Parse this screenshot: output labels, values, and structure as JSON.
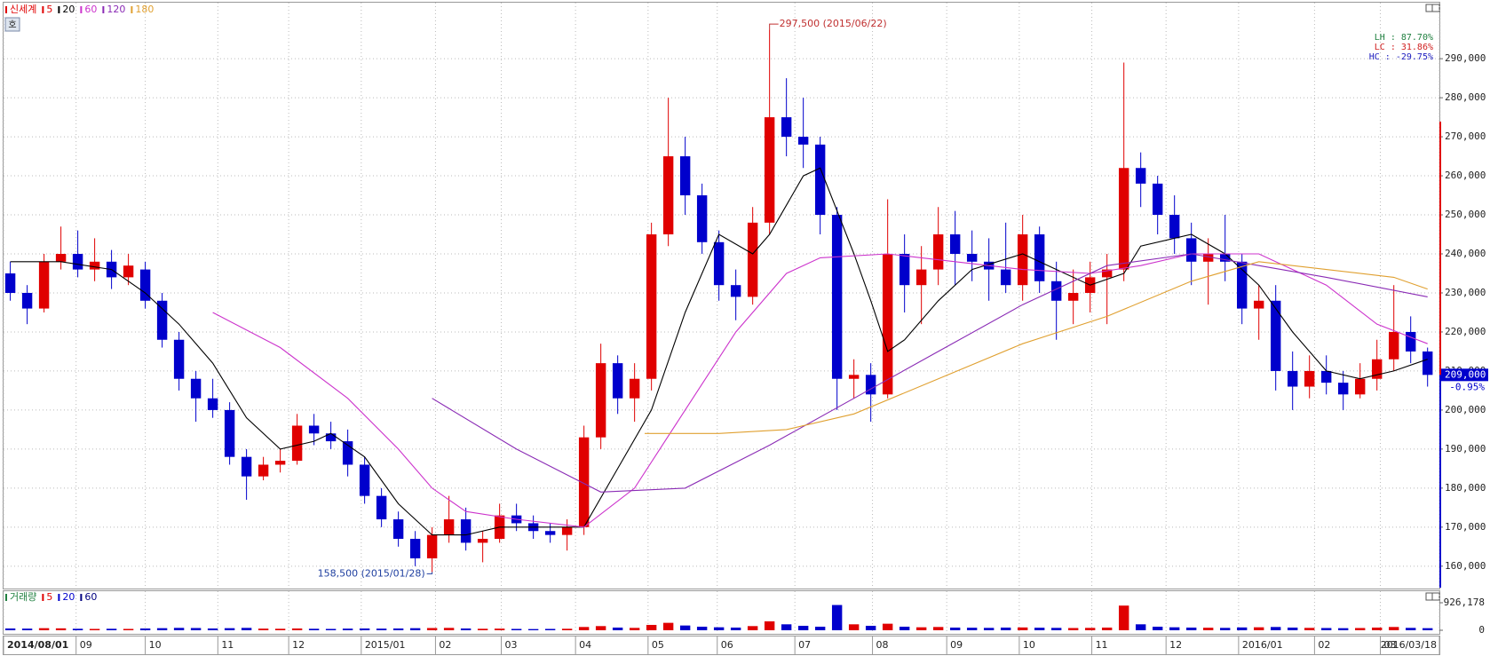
{
  "chart_data": {
    "type": "candlestick",
    "name": "신세계",
    "button": "호",
    "up_color": "#e00000",
    "down_color": "#0000cc",
    "open": [
      235000,
      230000,
      226000,
      238000,
      240000,
      236000,
      238000,
      234000,
      236000,
      228000,
      218000,
      208000,
      203000,
      200000,
      188000,
      183000,
      186000,
      187000,
      196000,
      194000,
      192000,
      186000,
      178000,
      172000,
      167000,
      162000,
      168000,
      172000,
      166000,
      167000,
      173000,
      171000,
      169000,
      168000,
      170000,
      193000,
      212000,
      203000,
      208000,
      245000,
      265000,
      255000,
      243000,
      232000,
      229000,
      248000,
      275000,
      270000,
      268000,
      250000,
      208000,
      209000,
      204000,
      240000,
      232000,
      236000,
      245000,
      240000,
      238000,
      236000,
      232000,
      245000,
      233000,
      228000,
      230000,
      234000,
      236000,
      262000,
      258000,
      250000,
      244000,
      238000,
      240000,
      238000,
      226000,
      228000,
      210000,
      206000,
      210000,
      207000,
      204000,
      208000,
      213000,
      220000,
      215000
    ],
    "high": [
      238000,
      232000,
      240000,
      247000,
      246000,
      244000,
      241000,
      240000,
      238000,
      230000,
      220000,
      210000,
      208000,
      202000,
      190000,
      188000,
      190000,
      199000,
      199000,
      197000,
      195000,
      188000,
      180000,
      174000,
      169000,
      170000,
      178000,
      175000,
      169000,
      176000,
      176000,
      173000,
      171000,
      172000,
      196000,
      217000,
      214000,
      212000,
      248000,
      280000,
      270000,
      258000,
      246000,
      236000,
      252000,
      297500,
      285000,
      280000,
      270000,
      252000,
      213000,
      212000,
      254000,
      245000,
      242000,
      252000,
      251000,
      246000,
      244000,
      248000,
      250000,
      247000,
      238000,
      236000,
      238000,
      240000,
      289000,
      266000,
      260000,
      255000,
      248000,
      244000,
      250000,
      240000,
      232000,
      232000,
      215000,
      214000,
      214000,
      210000,
      212000,
      218000,
      232000,
      224000,
      216000
    ],
    "low": [
      228000,
      222000,
      225000,
      236000,
      234000,
      233000,
      231000,
      232000,
      226000,
      216000,
      205000,
      197000,
      198000,
      186000,
      177000,
      182000,
      184000,
      186000,
      191000,
      190000,
      183000,
      176000,
      170000,
      165000,
      160000,
      158500,
      166000,
      164000,
      161000,
      166000,
      169000,
      167000,
      166000,
      164000,
      168000,
      190000,
      199000,
      197000,
      205000,
      242000,
      250000,
      240000,
      228000,
      223000,
      227000,
      245000,
      265000,
      262000,
      245000,
      200000,
      203000,
      197000,
      203000,
      225000,
      222000,
      232000,
      232000,
      233000,
      228000,
      230000,
      228000,
      230000,
      218000,
      222000,
      225000,
      222000,
      233000,
      252000,
      245000,
      240000,
      232000,
      227000,
      233000,
      222000,
      218000,
      205000,
      200000,
      203000,
      204000,
      200000,
      203000,
      205000,
      210000,
      212000,
      206000
    ],
    "close": [
      230000,
      226000,
      238000,
      240000,
      236000,
      238000,
      234000,
      237000,
      228000,
      218000,
      208000,
      203000,
      200000,
      188000,
      183000,
      186000,
      187000,
      196000,
      194000,
      192000,
      186000,
      178000,
      172000,
      167000,
      162000,
      168000,
      172000,
      166000,
      167000,
      173000,
      171000,
      169000,
      168000,
      170000,
      193000,
      212000,
      203000,
      208000,
      245000,
      265000,
      255000,
      243000,
      232000,
      229000,
      248000,
      275000,
      270000,
      268000,
      250000,
      208000,
      209000,
      204000,
      240000,
      232000,
      236000,
      245000,
      240000,
      238000,
      236000,
      232000,
      245000,
      233000,
      228000,
      230000,
      234000,
      236000,
      262000,
      258000,
      250000,
      244000,
      238000,
      240000,
      238000,
      226000,
      228000,
      210000,
      206000,
      210000,
      207000,
      204000,
      208000,
      213000,
      220000,
      215000,
      209000
    ],
    "moving_averages": [
      {
        "name": "5",
        "color": "#e00000"
      },
      {
        "name": "20",
        "color": "#000000",
        "x": [
          0,
          3,
          6,
          8,
          10,
          12,
          14,
          16,
          18,
          19,
          21,
          23,
          25,
          27,
          29,
          32,
          34,
          36,
          38,
          40,
          42,
          44,
          45,
          47,
          48,
          50,
          51,
          52,
          53,
          55,
          57,
          60,
          62,
          64,
          66,
          67,
          70,
          72,
          74,
          76,
          78,
          80,
          82,
          84
        ],
        "values": [
          238000,
          238000,
          236000,
          230000,
          222000,
          212000,
          198000,
          190000,
          192000,
          194000,
          188000,
          176000,
          168000,
          168000,
          170000,
          170000,
          170000,
          185000,
          200000,
          225000,
          245000,
          240000,
          245000,
          260000,
          262000,
          240000,
          228000,
          215000,
          218000,
          228000,
          236000,
          240000,
          236000,
          232000,
          235000,
          242000,
          245000,
          240000,
          232000,
          220000,
          210000,
          208000,
          210000,
          213000
        ]
      },
      {
        "name": "60",
        "color": "#cc33cc",
        "x": [
          12,
          16,
          20,
          23,
          25,
          27,
          30,
          34,
          37,
          40,
          43,
          46,
          48,
          52,
          56,
          60,
          64,
          67,
          70,
          74,
          78,
          81,
          84
        ],
        "values": [
          225000,
          216000,
          203000,
          190000,
          180000,
          174000,
          172000,
          170000,
          180000,
          200000,
          220000,
          235000,
          239000,
          240000,
          238000,
          236000,
          235000,
          237000,
          240000,
          240000,
          232000,
          222000,
          217000
        ]
      },
      {
        "name": "120",
        "color": "#8a2bb5",
        "x": [
          25,
          30,
          35,
          40,
          45,
          50,
          55,
          60,
          65,
          70,
          74,
          78,
          84
        ],
        "values": [
          203000,
          190000,
          179000,
          180000,
          191000,
          203000,
          215000,
          227000,
          237000,
          240000,
          237000,
          234000,
          229000
        ]
      },
      {
        "name": "180",
        "color": "#e0a030",
        "x": [
          37.6,
          42,
          46,
          50,
          55,
          60,
          65,
          70,
          74,
          78,
          82,
          84
        ],
        "values": [
          194000,
          194000,
          195000,
          199000,
          208000,
          217000,
          224000,
          233000,
          238000,
          236000,
          234000,
          231000
        ]
      }
    ],
    "ylim": [
      154500,
      303900
    ],
    "yticks": [
      {
        "value": 160000,
        "label": "160,000"
      },
      {
        "value": 170000,
        "label": "170,000"
      },
      {
        "value": 180000,
        "label": "180,000"
      },
      {
        "value": 190000,
        "label": "190,000"
      },
      {
        "value": 200000,
        "label": "200,000"
      },
      {
        "value": 210000,
        "label": "210,000"
      },
      {
        "value": 220000,
        "label": "220,000"
      },
      {
        "value": 230000,
        "label": "230,000"
      },
      {
        "value": 240000,
        "label": "240,000"
      },
      {
        "value": 250000,
        "label": "250,000"
      },
      {
        "value": 260000,
        "label": "260,000"
      },
      {
        "value": 270000,
        "label": "270,000"
      },
      {
        "value": 280000,
        "label": "280,000"
      },
      {
        "value": 290000,
        "label": "290,000"
      }
    ],
    "xlim": [
      -0.4,
      84.7
    ],
    "xticks": [
      {
        "value": -0.4,
        "label": "2014/08/01"
      },
      {
        "value": 3.9,
        "label": "09"
      },
      {
        "value": 8.0,
        "label": "10"
      },
      {
        "value": 12.3,
        "label": "11"
      },
      {
        "value": 16.5,
        "label": "12"
      },
      {
        "value": 20.8,
        "label": "2015/01"
      },
      {
        "value": 25.2,
        "label": "02"
      },
      {
        "value": 29.1,
        "label": "03"
      },
      {
        "value": 33.5,
        "label": "04"
      },
      {
        "value": 37.8,
        "label": "05"
      },
      {
        "value": 41.9,
        "label": "06"
      },
      {
        "value": 46.5,
        "label": "07"
      },
      {
        "value": 51.1,
        "label": "08"
      },
      {
        "value": 55.5,
        "label": "09"
      },
      {
        "value": 59.8,
        "label": "10"
      },
      {
        "value": 64.1,
        "label": "11"
      },
      {
        "value": 68.5,
        "label": "12"
      },
      {
        "value": 72.8,
        "label": "2016/01"
      },
      {
        "value": 77.3,
        "label": "02"
      },
      {
        "value": 81.2,
        "label": "03"
      },
      {
        "value": 84.7,
        "label": "2016/03/18"
      }
    ],
    "grid": true,
    "annotations": [
      {
        "text": "297,500 (2015/06/22)",
        "x": 45,
        "y": 297500,
        "color": "#c03030",
        "side": "right"
      },
      {
        "text": "158,500 (2015/01/28)",
        "x": 25,
        "y": 158500,
        "color": "#2040a0",
        "side": "left"
      }
    ],
    "stats": [
      {
        "text": "LH :  87.70%",
        "color": "#208040"
      },
      {
        "text": "LC :  31.86%",
        "color": "#d02020"
      },
      {
        "text": "HC : -29.75%",
        "color": "#2020c0"
      }
    ],
    "last_price": {
      "value": 209000,
      "label": "209,000"
    },
    "change": "-0.95%",
    "volume": {
      "name": "거래량",
      "values": [
        60000,
        55000,
        70000,
        65000,
        50000,
        45000,
        50000,
        45000,
        60000,
        70000,
        80000,
        75000,
        60000,
        70000,
        80000,
        55000,
        50000,
        60000,
        50000,
        45000,
        55000,
        60000,
        55000,
        60000,
        70000,
        75000,
        80000,
        60000,
        50000,
        55000,
        45000,
        40000,
        45000,
        50000,
        110000,
        140000,
        90000,
        80000,
        180000,
        250000,
        160000,
        120000,
        100000,
        90000,
        140000,
        300000,
        200000,
        150000,
        120000,
        850000,
        200000,
        150000,
        220000,
        120000,
        100000,
        110000,
        90000,
        85000,
        80000,
        90000,
        95000,
        85000,
        80000,
        75000,
        80000,
        90000,
        830000,
        200000,
        120000,
        100000,
        90000,
        85000,
        80000,
        95000,
        100000,
        110000,
        90000,
        80000,
        75000,
        70000,
        75000,
        90000,
        110000,
        80000,
        70000
      ],
      "ylim": [
        0,
        926178
      ],
      "yticks": [
        {
          "value": 926178,
          "label": "926,178"
        },
        0
      ],
      "moving_averages": [
        {
          "name": "5",
          "color": "#e00000"
        },
        {
          "name": "20",
          "color": "#0000cc"
        },
        {
          "name": "60",
          "color": "#000080"
        }
      ]
    }
  }
}
